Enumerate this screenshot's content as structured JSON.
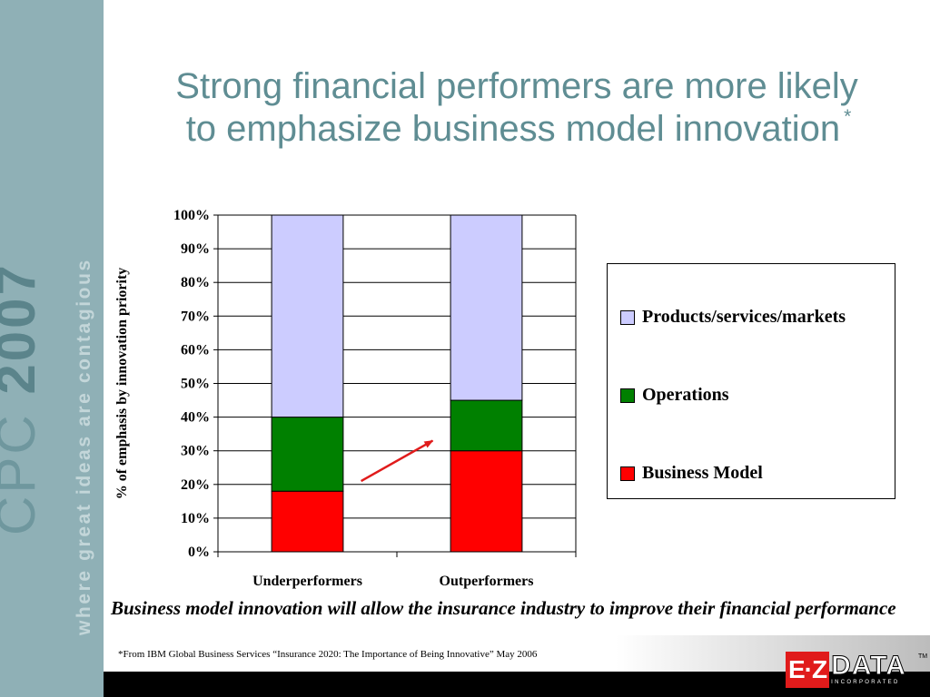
{
  "sidebar": {
    "brand": "CPC",
    "year": "2007",
    "tagline": "where great ideas are contagious"
  },
  "slide": {
    "title_line1": "Strong financial performers are more likely",
    "title_line2": "to emphasize business model innovation",
    "title_asterisk": "*",
    "caption": "Business model innovation will allow the insurance industry to improve their financial performance",
    "footnote": "*From IBM Global Business Services “Insurance 2020: The Importance of Being Innovative” May 2006"
  },
  "logo": {
    "ez": "E·Z",
    "data": "DATA",
    "incorporated": "INCORPORATED",
    "tm": "TM"
  },
  "chart_data": {
    "type": "bar",
    "stacked": true,
    "categories": [
      "Underperformers",
      "Outperformers"
    ],
    "series": [
      {
        "name": "Business Model",
        "values": [
          18,
          30
        ],
        "color": "#ff0000"
      },
      {
        "name": "Operations",
        "values": [
          22,
          15
        ],
        "color": "#008000"
      },
      {
        "name": "Products/services/markets",
        "values": [
          60,
          55
        ],
        "color": "#ccccff"
      }
    ],
    "yticks": [
      "0%",
      "10%",
      "20%",
      "30%",
      "40%",
      "50%",
      "60%",
      "70%",
      "80%",
      "90%",
      "100%"
    ],
    "ylim": [
      0,
      100
    ],
    "ylabel": "% of emphasis by innovation priority",
    "xlabel": "",
    "grid": true,
    "legend_placement": "right",
    "annotation": "red arrow from Underperformers' Business Model segment up toward Outperformers' Business Model segment",
    "arrow_color": "#e01b1b",
    "arrow": {
      "from": [
        0.3,
        21
      ],
      "to": [
        0.7,
        33
      ]
    }
  }
}
